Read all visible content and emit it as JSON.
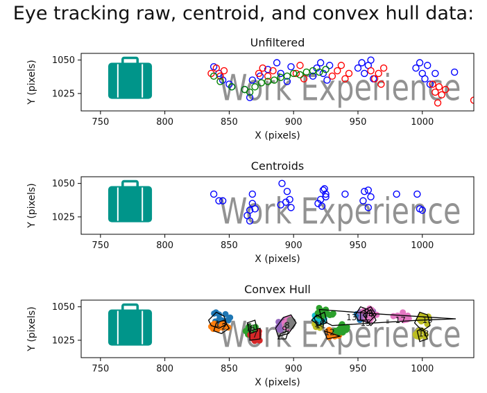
{
  "page_title": "Eye tracking raw, centroid, and convex hull data:",
  "colors": {
    "raw_blue": "#0000ff",
    "raw_red": "#ff0000",
    "raw_green": "#008000",
    "image_text": "#7f7f7f",
    "icon_teal": "#00958a"
  },
  "background_image": {
    "icon": "briefcase-icon",
    "text": "Work Experience"
  },
  "chart_data": [
    {
      "type": "scatter",
      "title": "Unfiltered",
      "xlabel": "X (pixels)",
      "ylabel": "Y (pixels)",
      "xlim": [
        735,
        1040
      ],
      "ylim": [
        1012,
        1055
      ],
      "xticks": [
        750,
        800,
        850,
        900,
        950,
        1000
      ],
      "yticks": [
        1025,
        1050
      ],
      "grid": false,
      "series": [
        {
          "color": "#0000ff",
          "points": [
            [
              838,
              1045
            ],
            [
              842,
              1040
            ],
            [
              845,
              1035
            ],
            [
              850,
              1032
            ],
            [
              852,
              1030
            ],
            [
              862,
              1028
            ],
            [
              866,
              1022
            ],
            [
              868,
              1035
            ],
            [
              874,
              1038
            ],
            [
              880,
              1043
            ],
            [
              887,
              1048
            ],
            [
              890,
              1040
            ],
            [
              895,
              1034
            ],
            [
              898,
              1045
            ],
            [
              915,
              1038
            ],
            [
              918,
              1044
            ],
            [
              921,
              1048
            ],
            [
              923,
              1040
            ],
            [
              926,
              1035
            ],
            [
              928,
              1046
            ],
            [
              950,
              1044
            ],
            [
              953,
              1048
            ],
            [
              955,
              1040
            ],
            [
              958,
              1046
            ],
            [
              960,
              1050
            ],
            [
              962,
              1036
            ],
            [
              995,
              1044
            ],
            [
              998,
              1048
            ],
            [
              1000,
              1040
            ],
            [
              1002,
              1036
            ],
            [
              1004,
              1046
            ],
            [
              1006,
              1032
            ],
            [
              1010,
              1040
            ],
            [
              1025,
              1041
            ]
          ]
        },
        {
          "color": "#ff0000",
          "points": [
            [
              836,
              1040
            ],
            [
              840,
              1044
            ],
            [
              843,
              1038
            ],
            [
              846,
              1042
            ],
            [
              873,
              1040
            ],
            [
              876,
              1044
            ],
            [
              880,
              1038
            ],
            [
              884,
              1042
            ],
            [
              902,
              1040
            ],
            [
              905,
              1046
            ],
            [
              908,
              1036
            ],
            [
              930,
              1038
            ],
            [
              934,
              1042
            ],
            [
              937,
              1046
            ],
            [
              940,
              1036
            ],
            [
              943,
              1040
            ],
            [
              960,
              1042
            ],
            [
              963,
              1036
            ],
            [
              966,
              1040
            ],
            [
              968,
              1032
            ],
            [
              970,
              1044
            ],
            [
              1008,
              1032
            ],
            [
              1010,
              1026
            ],
            [
              1013,
              1030
            ],
            [
              1015,
              1024
            ],
            [
              1018,
              1028
            ],
            [
              1012,
              1018
            ],
            [
              1040,
              1020
            ]
          ]
        },
        {
          "color": "#008000",
          "points": [
            [
              838,
              1038
            ],
            [
              843,
              1034
            ],
            [
              852,
              1030
            ],
            [
              862,
              1028
            ],
            [
              866,
              1026
            ],
            [
              870,
              1030
            ],
            [
              875,
              1033
            ],
            [
              880,
              1034
            ],
            [
              885,
              1035
            ],
            [
              890,
              1037
            ],
            [
              895,
              1038
            ],
            [
              900,
              1040
            ],
            [
              905,
              1039
            ],
            [
              910,
              1041
            ],
            [
              915,
              1042
            ],
            [
              920,
              1041
            ],
            [
              925,
              1043
            ]
          ]
        }
      ]
    },
    {
      "type": "scatter",
      "title": "Centroids",
      "xlabel": "X (pixels)",
      "ylabel": "Y (pixels)",
      "xlim": [
        735,
        1040
      ],
      "ylim": [
        1012,
        1055
      ],
      "xticks": [
        750,
        800,
        850,
        900,
        950,
        1000
      ],
      "yticks": [
        1025,
        1050
      ],
      "grid": false,
      "series": [
        {
          "color": "#0000ff",
          "points": [
            [
              838,
              1042
            ],
            [
              842,
              1037
            ],
            [
              845,
              1037
            ],
            [
              864,
              1026
            ],
            [
              866,
              1022
            ],
            [
              866,
              1030
            ],
            [
              868,
              1035
            ],
            [
              868,
              1042
            ],
            [
              870,
              1031
            ],
            [
              890,
              1034
            ],
            [
              891,
              1050
            ],
            [
              894,
              1036
            ],
            [
              895,
              1044
            ],
            [
              897,
              1038
            ],
            [
              898,
              1032
            ],
            [
              919,
              1035
            ],
            [
              921,
              1038
            ],
            [
              922,
              1033
            ],
            [
              923,
              1045
            ],
            [
              925,
              1042
            ],
            [
              924,
              1046
            ],
            [
              925,
              1040
            ],
            [
              940,
              1042
            ],
            [
              954,
              1037
            ],
            [
              955,
              1044
            ],
            [
              958,
              1045
            ],
            [
              958,
              1032
            ],
            [
              960,
              1040
            ],
            [
              980,
              1042
            ],
            [
              996,
              1042
            ],
            [
              998,
              1031
            ],
            [
              1000,
              1030
            ]
          ]
        }
      ]
    },
    {
      "type": "scatter",
      "title": "Convex Hull",
      "xlabel": "X (pixels)",
      "ylabel": "Y (pixels)",
      "xlim": [
        735,
        1040
      ],
      "ylim": [
        1012,
        1055
      ],
      "xticks": [
        750,
        800,
        850,
        900,
        950,
        1000
      ],
      "yticks": [
        1025,
        1050
      ],
      "grid": false,
      "clusters": [
        {
          "color": "#1f77b4",
          "center": [
            843,
            1042
          ],
          "spread": [
            8,
            5
          ]
        },
        {
          "color": "#ff7f0e",
          "center": [
            842,
            1036
          ],
          "spread": [
            9,
            3
          ]
        },
        {
          "color": "#2ca02c",
          "center": [
            867,
            1032
          ],
          "spread": [
            5,
            5
          ]
        },
        {
          "color": "#d62728",
          "center": [
            870,
            1028
          ],
          "spread": [
            5,
            5
          ]
        },
        {
          "color": "#9467bd",
          "center": [
            891,
            1036
          ],
          "spread": [
            4,
            4
          ]
        },
        {
          "color": "#8c564b",
          "center": [
            895,
            1037
          ],
          "spread": [
            3,
            3
          ]
        },
        {
          "color": "#e377c2",
          "center": [
            896,
            1038
          ],
          "spread": [
            4,
            4
          ]
        },
        {
          "color": "#7f7f7f",
          "center": [
            897,
            1038
          ],
          "spread": [
            3,
            3
          ]
        },
        {
          "color": "#bcbd22",
          "center": [
            919,
            1038
          ],
          "spread": [
            4,
            4
          ]
        },
        {
          "color": "#17becf",
          "center": [
            920,
            1042
          ],
          "spread": [
            4,
            4
          ]
        },
        {
          "color": "#2ca02c",
          "center": [
            924,
            1046
          ],
          "spread": [
            8,
            4
          ]
        },
        {
          "color": "#ff7f0e",
          "center": [
            930,
            1030
          ],
          "spread": [
            7,
            3
          ]
        },
        {
          "color": "#2ca02c",
          "center": [
            937,
            1034
          ],
          "spread": [
            6,
            4
          ]
        },
        {
          "color": "#1f77b4",
          "center": [
            952,
            1044
          ],
          "spread": [
            4,
            4
          ]
        },
        {
          "color": "#9467bd",
          "center": [
            957,
            1045
          ],
          "spread": [
            6,
            5
          ]
        },
        {
          "color": "#e377c2",
          "center": [
            959,
            1044
          ],
          "spread": [
            6,
            5
          ]
        },
        {
          "color": "#e377c2",
          "center": [
            985,
            1043
          ],
          "spread": [
            8,
            3
          ]
        },
        {
          "color": "#bcbd22",
          "center": [
            999,
            1030
          ],
          "spread": [
            5,
            3
          ]
        },
        {
          "color": "#bcbd22",
          "center": [
            1001,
            1040
          ],
          "spread": [
            5,
            5
          ]
        }
      ],
      "hull_polygons": [
        [
          [
            834,
            1040
          ],
          [
            840,
            1046
          ],
          [
            846,
            1043
          ],
          [
            848,
            1037
          ],
          [
            842,
            1034
          ],
          [
            836,
            1036
          ]
        ],
        [
          [
            840,
            1038
          ],
          [
            846,
            1040
          ],
          [
            850,
            1034
          ],
          [
            844,
            1030
          ],
          [
            838,
            1032
          ]
        ],
        [
          [
            864,
            1038
          ],
          [
            870,
            1040
          ],
          [
            872,
            1032
          ],
          [
            866,
            1030
          ]
        ],
        [
          [
            866,
            1032
          ],
          [
            874,
            1034
          ],
          [
            874,
            1026
          ],
          [
            866,
            1025
          ]
        ],
        [
          [
            886,
            1034
          ],
          [
            892,
            1042
          ],
          [
            898,
            1044
          ],
          [
            902,
            1038
          ],
          [
            896,
            1030
          ],
          [
            888,
            1028
          ]
        ],
        [
          [
            890,
            1030
          ],
          [
            896,
            1032
          ],
          [
            894,
            1026
          ],
          [
            888,
            1026
          ]
        ],
        [
          [
            914,
            1040
          ],
          [
            918,
            1044
          ],
          [
            924,
            1040
          ],
          [
            920,
            1036
          ]
        ],
        [
          [
            916,
            1042
          ],
          [
            924,
            1046
          ],
          [
            926,
            1038
          ],
          [
            918,
            1036
          ]
        ],
        [
          [
            920,
            1048
          ],
          [
            960,
            1045
          ],
          [
            1026,
            1041
          ],
          [
            998,
            1040
          ],
          [
            930,
            1036
          ],
          [
            922,
            1040
          ]
        ],
        [
          [
            924,
            1032
          ],
          [
            930,
            1030
          ],
          [
            936,
            1028
          ],
          [
            926,
            1026
          ]
        ],
        [
          [
            948,
            1044
          ],
          [
            952,
            1050
          ],
          [
            958,
            1048
          ],
          [
            956,
            1040
          ],
          [
            950,
            1040
          ]
        ],
        [
          [
            952,
            1046
          ],
          [
            960,
            1050
          ],
          [
            964,
            1044
          ],
          [
            958,
            1038
          ],
          [
            952,
            1040
          ]
        ],
        [
          [
            954,
            1044
          ],
          [
            960,
            1048
          ],
          [
            964,
            1040
          ],
          [
            960,
            1036
          ]
        ],
        [
          [
            994,
            1038
          ],
          [
            998,
            1046
          ],
          [
            1004,
            1044
          ],
          [
            1006,
            1036
          ],
          [
            1000,
            1032
          ]
        ],
        [
          [
            996,
            1032
          ],
          [
            1000,
            1034
          ],
          [
            1004,
            1026
          ],
          [
            998,
            1024
          ]
        ]
      ],
      "hull_line_color": "#000000",
      "labels": [
        {
          "text": "1",
          "at": [
            841,
            1037
          ]
        },
        {
          "text": "2",
          "at": [
            846,
            1035
          ]
        },
        {
          "text": "3",
          "at": [
            846,
            1037
          ]
        },
        {
          "text": "4",
          "at": [
            866,
            1033
          ]
        },
        {
          "text": "5",
          "at": [
            866,
            1035
          ]
        },
        {
          "text": "6",
          "at": [
            868,
            1034
          ]
        },
        {
          "text": "7",
          "at": [
            870,
            1029
          ]
        },
        {
          "text": "8",
          "at": [
            895,
            1036
          ]
        },
        {
          "text": "9",
          "at": [
            893,
            1033
          ]
        },
        {
          "text": "10",
          "at": [
            920,
            1037
          ]
        },
        {
          "text": "11",
          "at": [
            921,
            1036
          ]
        },
        {
          "text": "12",
          "at": [
            928,
            1031
          ]
        },
        {
          "text": "13",
          "at": [
            945,
            1042
          ]
        },
        {
          "text": "14",
          "at": [
            958,
            1044
          ]
        },
        {
          "text": "15",
          "at": [
            956,
            1038
          ]
        },
        {
          "text": "16",
          "at": [
            958,
            1045
          ]
        },
        {
          "text": "17",
          "at": [
            983,
            1040
          ]
        },
        {
          "text": "18",
          "at": [
            1001,
            1030
          ]
        },
        {
          "text": "19",
          "at": [
            1004,
            1040
          ]
        }
      ]
    }
  ]
}
